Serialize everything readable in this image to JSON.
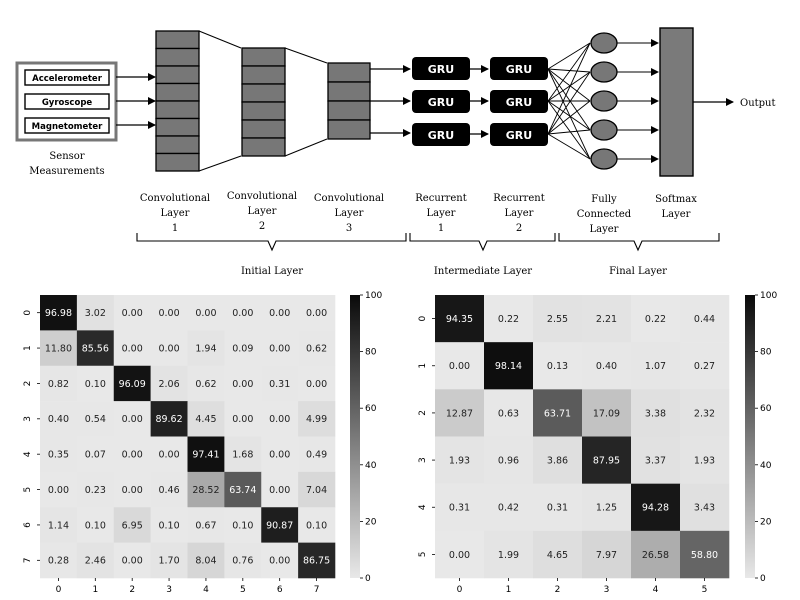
{
  "diagram": {
    "sensors": [
      "Accelerometer",
      "Gyroscope",
      "Magnetometer"
    ],
    "sensor_caption": [
      "Sensor",
      "Measurements"
    ],
    "gru_label": "GRU",
    "output_label": "Output",
    "layer_labels": {
      "conv1": [
        "Convolutional",
        "Layer",
        "1"
      ],
      "conv2": [
        "Convolutional",
        "Layer",
        "2"
      ],
      "conv3": [
        "Convolutional",
        "Layer",
        "3"
      ],
      "rec1": [
        "Recurrent",
        "Layer",
        "1"
      ],
      "rec2": [
        "Recurrent",
        "Layer",
        "2"
      ],
      "fc": [
        "Fully",
        "Connected",
        "Layer"
      ],
      "softmax": [
        "Softmax",
        "Layer"
      ]
    },
    "groups": {
      "initial": "Initial Layer",
      "intermediate": "Intermediate Layer",
      "final": "Final Layer"
    }
  },
  "chart_data": [
    {
      "type": "heatmap",
      "x": [
        "0",
        "1",
        "2",
        "3",
        "4",
        "5",
        "6",
        "7"
      ],
      "y": [
        "0",
        "1",
        "2",
        "3",
        "4",
        "5",
        "6",
        "7"
      ],
      "values": [
        [
          96.98,
          3.02,
          0.0,
          0.0,
          0.0,
          0.0,
          0.0,
          0.0
        ],
        [
          11.8,
          85.56,
          0.0,
          0.0,
          1.94,
          0.09,
          0.0,
          0.62
        ],
        [
          0.82,
          0.1,
          96.09,
          2.06,
          0.62,
          0.0,
          0.31,
          0.0
        ],
        [
          0.4,
          0.54,
          0.0,
          89.62,
          4.45,
          0.0,
          0.0,
          4.99
        ],
        [
          0.35,
          0.07,
          0.0,
          0.0,
          97.41,
          1.68,
          0.0,
          0.49
        ],
        [
          0.0,
          0.23,
          0.0,
          0.46,
          28.52,
          63.74,
          0.0,
          7.04
        ],
        [
          1.14,
          0.1,
          6.95,
          0.1,
          0.67,
          0.1,
          90.87,
          0.1
        ],
        [
          0.28,
          2.46,
          0.0,
          1.7,
          8.04,
          0.76,
          0.0,
          86.75
        ]
      ],
      "labels": [
        [
          "96.98",
          "3.02",
          "0.00",
          "0.00",
          "0.00",
          "0.00",
          "0.00",
          "0.00"
        ],
        [
          "11.80",
          "85.56",
          "0.00",
          "0.00",
          "1.94",
          "0.09",
          "0.00",
          "0.62"
        ],
        [
          "0.82",
          "0.10",
          "96.09",
          "2.06",
          "0.62",
          "0.00",
          "0.31",
          "0.00"
        ],
        [
          "0.40",
          "0.54",
          "0.00",
          "89.62",
          "4.45",
          "0.00",
          "0.00",
          "4.99"
        ],
        [
          "0.35",
          "0.07",
          "0.00",
          "0.00",
          "97.41",
          "1.68",
          "0.00",
          "0.49"
        ],
        [
          "0.00",
          "0.23",
          "0.00",
          "0.46",
          "28.52",
          "63.74",
          "0.00",
          "7.04"
        ],
        [
          "1.14",
          "0.10",
          "6.95",
          "0.10",
          "0.67",
          "0.10",
          "90.87",
          "0.10"
        ],
        [
          "0.28",
          "2.46",
          "0.00",
          "1.70",
          "8.04",
          "0.76",
          "0.00",
          "86.75"
        ]
      ],
      "colorbar": {
        "range": [
          0,
          100
        ],
        "ticks": [
          "0",
          "20",
          "40",
          "60",
          "80",
          "100"
        ]
      },
      "colormap": [
        "#e8e8e8",
        "#0a0a0a"
      ]
    },
    {
      "type": "heatmap",
      "x": [
        "0",
        "1",
        "2",
        "3",
        "4",
        "5"
      ],
      "y": [
        "0",
        "1",
        "2",
        "3",
        "4",
        "5"
      ],
      "values": [
        [
          94.35,
          0.22,
          2.55,
          2.21,
          0.22,
          0.44
        ],
        [
          0.0,
          98.14,
          0.13,
          0.4,
          1.07,
          0.27
        ],
        [
          12.87,
          0.63,
          63.71,
          17.09,
          3.38,
          2.32
        ],
        [
          1.93,
          0.96,
          3.86,
          87.95,
          3.37,
          1.93
        ],
        [
          0.31,
          0.42,
          0.31,
          1.25,
          94.28,
          3.43
        ],
        [
          0.0,
          1.99,
          4.65,
          7.97,
          26.58,
          58.8
        ]
      ],
      "labels": [
        [
          "94.35",
          "0.22",
          "2.55",
          "2.21",
          "0.22",
          "0.44"
        ],
        [
          "0.00",
          "98.14",
          "0.13",
          "0.40",
          "1.07",
          "0.27"
        ],
        [
          "12.87",
          "0.63",
          "63.71",
          "17.09",
          "3.38",
          "2.32"
        ],
        [
          "1.93",
          "0.96",
          "3.86",
          "87.95",
          "3.37",
          "1.93"
        ],
        [
          "0.31",
          "0.42",
          "0.31",
          "1.25",
          "94.28",
          "3.43"
        ],
        [
          "0.00",
          "1.99",
          "4.65",
          "7.97",
          "26.58",
          "58.80"
        ]
      ],
      "colorbar": {
        "range": [
          0,
          100
        ],
        "ticks": [
          "0",
          "20",
          "40",
          "60",
          "80",
          "100"
        ]
      },
      "colormap": [
        "#e8e8e8",
        "#0a0a0a"
      ]
    }
  ]
}
